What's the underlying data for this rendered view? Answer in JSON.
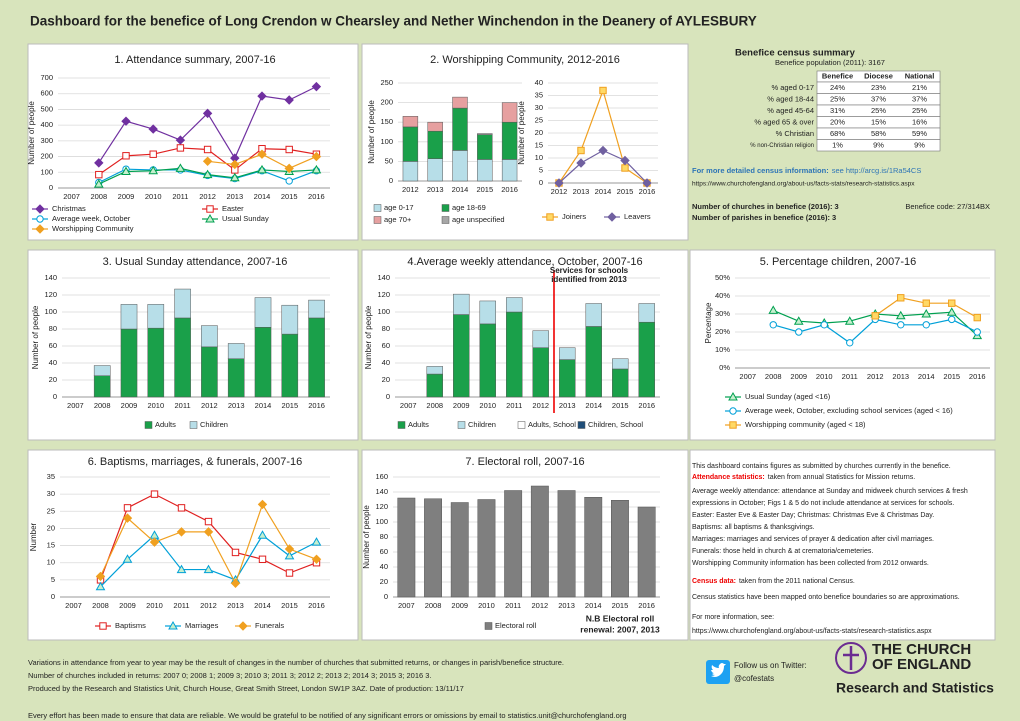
{
  "title": "Dashboard for the benefice of Long Crendon w Chearsley and Nether Winchendon in the Deanery of AYLESBURY",
  "chart_data": [
    {
      "type": "line",
      "title": "1. Attendance summary, 2007-16",
      "y_label": "Number of people",
      "grid": true,
      "categories": [
        "2007",
        "2008",
        "2009",
        "2010",
        "2011",
        "2012",
        "2013",
        "2014",
        "2015",
        "2016"
      ],
      "ylim": [
        0,
        700
      ],
      "yticks": [
        0,
        100,
        200,
        300,
        400,
        500,
        600,
        700
      ],
      "series": [
        {
          "name": "Christmas",
          "color": "#7030a0",
          "marker": "diamond",
          "values": [
            null,
            160,
            425,
            375,
            305,
            475,
            190,
            585,
            560,
            645
          ]
        },
        {
          "name": "Easter",
          "color": "#e02020",
          "marker": "square",
          "values": [
            null,
            85,
            205,
            215,
            255,
            245,
            115,
            250,
            245,
            215
          ]
        },
        {
          "name": "Average week, October",
          "color": "#00a0d8",
          "marker": "circle",
          "values": [
            null,
            35,
            120,
            115,
            115,
            80,
            60,
            110,
            45,
            110
          ]
        },
        {
          "name": "Usual Sunday",
          "color": "#00a050",
          "marker": "triangle",
          "values": [
            null,
            25,
            105,
            110,
            125,
            85,
            65,
            115,
            105,
            115
          ]
        },
        {
          "name": "Worshipping Community",
          "color": "#f0a020",
          "marker": "diamond",
          "values": [
            null,
            null,
            null,
            null,
            null,
            170,
            150,
            215,
            125,
            200
          ]
        }
      ]
    },
    {
      "type": "stacked-bar",
      "title": "2. Worshipping Community, 2012-2016",
      "y_label": "Number of people",
      "grid": true,
      "categories": [
        "2012",
        "2013",
        "2014",
        "2015",
        "2016"
      ],
      "ylim": [
        0,
        250
      ],
      "yticks": [
        0,
        50,
        100,
        150,
        200,
        250
      ],
      "series": [
        {
          "name": "age 0-17",
          "color": "#b7dee8",
          "values": [
            50,
            57,
            78,
            55,
            55
          ]
        },
        {
          "name": "age 18-69",
          "color": "#1aa04a",
          "values": [
            88,
            70,
            108,
            63,
            95
          ]
        },
        {
          "name": "age 70+",
          "color": "#e6a0a0",
          "values": [
            27,
            23,
            28,
            0,
            50
          ]
        },
        {
          "name": "age unspecified",
          "color": "#a6a6a6",
          "values": [
            0,
            0,
            0,
            3,
            0
          ]
        }
      ]
    },
    {
      "type": "line",
      "y_label": "Number of people",
      "grid": true,
      "categories": [
        "2012",
        "2013",
        "2014",
        "2015",
        "2016"
      ],
      "ylim": [
        0,
        40
      ],
      "yticks": [
        0,
        5,
        10,
        15,
        20,
        25,
        30,
        35,
        40
      ],
      "series": [
        {
          "name": "Joiners",
          "color": "#f0a020",
          "marker": "square",
          "values": [
            0,
            13,
            37,
            6,
            0
          ]
        },
        {
          "name": "Leavers",
          "color": "#7060a0",
          "marker": "diamond",
          "values": [
            0,
            8,
            13,
            9,
            0
          ]
        }
      ]
    },
    {
      "type": "stacked-bar",
      "title": "3. Usual Sunday attendance, 2007-16",
      "y_label": "Number of people",
      "grid": true,
      "categories": [
        "2007",
        "2008",
        "2009",
        "2010",
        "2011",
        "2012",
        "2013",
        "2014",
        "2015",
        "2016"
      ],
      "ylim": [
        0,
        140
      ],
      "yticks": [
        0,
        20,
        40,
        60,
        80,
        100,
        120,
        140
      ],
      "series": [
        {
          "name": "Adults",
          "color": "#1aa04a",
          "values": [
            null,
            25,
            80,
            81,
            93,
            59,
            45,
            82,
            74,
            93
          ]
        },
        {
          "name": "Children",
          "color": "#b7dee8",
          "values": [
            null,
            12,
            29,
            28,
            34,
            25,
            18,
            35,
            34,
            21
          ]
        }
      ]
    },
    {
      "type": "stacked-bar",
      "title": "4.Average weekly attendance, October, 2007-16",
      "y_label": "Number of people",
      "grid": true,
      "annotation": [
        "Services for schools",
        "identified from 2013"
      ],
      "categories": [
        "2007",
        "2008",
        "2009",
        "2010",
        "2011",
        "2012",
        "2013",
        "2014",
        "2015",
        "2016"
      ],
      "ylim": [
        0,
        140
      ],
      "yticks": [
        0,
        20,
        40,
        60,
        80,
        100,
        120,
        140
      ],
      "series": [
        {
          "name": "Adults",
          "color": "#1aa04a",
          "values": [
            null,
            27,
            97,
            86,
            100,
            58,
            44,
            83,
            33,
            88
          ]
        },
        {
          "name": "Children",
          "color": "#b7dee8",
          "values": [
            null,
            9,
            24,
            27,
            17,
            20,
            14,
            27,
            12,
            22
          ]
        },
        {
          "name": "Adults, School",
          "color": "#ffffff",
          "values": [
            null,
            null,
            null,
            null,
            null,
            null,
            0,
            0,
            0,
            0
          ]
        },
        {
          "name": "Children, School",
          "color": "#1f4e79",
          "values": [
            null,
            null,
            null,
            null,
            null,
            null,
            0,
            0,
            0,
            0
          ]
        }
      ]
    },
    {
      "type": "line",
      "title": "5. Percentage children, 2007-16",
      "y_label": "Percentage",
      "grid": true,
      "categories": [
        "2007",
        "2008",
        "2009",
        "2010",
        "2011",
        "2012",
        "2013",
        "2014",
        "2015",
        "2016"
      ],
      "ylim": [
        0,
        50
      ],
      "yticks": [
        {
          "value": 0,
          "label": "0%"
        },
        {
          "value": 10,
          "label": "10%"
        },
        {
          "value": 20,
          "label": "20%"
        },
        {
          "value": 30,
          "label": "30%"
        },
        {
          "value": 40,
          "label": "40%"
        },
        {
          "value": 50,
          "label": "50%"
        }
      ],
      "series": [
        {
          "name": "Usual Sunday (aged <16)",
          "color": "#00a050",
          "marker": "triangle",
          "values": [
            null,
            32,
            26,
            25,
            26,
            30,
            29,
            30,
            31,
            18
          ]
        },
        {
          "name": "Average week, October, excluding school services (aged < 16)",
          "color": "#00a0d8",
          "marker": "circle",
          "values": [
            null,
            24,
            20,
            24,
            14,
            27,
            24,
            24,
            27,
            20
          ]
        },
        {
          "name": "Worshipping community (aged < 18)",
          "color": "#f0a020",
          "marker": "square",
          "values": [
            null,
            null,
            null,
            null,
            null,
            29,
            39,
            36,
            36,
            28
          ]
        }
      ]
    },
    {
      "type": "line",
      "title": "6. Baptisms, marriages, & funerals, 2007-16",
      "y_label": "Number",
      "grid": true,
      "categories": [
        "2007",
        "2008",
        "2009",
        "2010",
        "2011",
        "2012",
        "2013",
        "2014",
        "2015",
        "2016"
      ],
      "ylim": [
        0,
        35
      ],
      "yticks": [
        0,
        5,
        10,
        15,
        20,
        25,
        30,
        35
      ],
      "series": [
        {
          "name": "Baptisms",
          "color": "#e02020",
          "marker": "square",
          "values": [
            null,
            5,
            26,
            30,
            26,
            22,
            13,
            11,
            7,
            10
          ]
        },
        {
          "name": "Marriages",
          "color": "#00a0d8",
          "marker": "triangle",
          "values": [
            null,
            3,
            11,
            18,
            8,
            8,
            5,
            18,
            12,
            16
          ]
        },
        {
          "name": "Funerals",
          "color": "#f0a020",
          "marker": "diamond",
          "values": [
            null,
            6,
            23,
            16,
            19,
            19,
            4,
            27,
            14,
            11
          ]
        }
      ]
    },
    {
      "type": "bar",
      "title": "7. Electoral roll, 2007-16",
      "y_label": "Number of people",
      "grid": true,
      "annotation": [
        "N.B Electoral roll",
        "renewal: 2007, 2013"
      ],
      "categories": [
        "2007",
        "2008",
        "2009",
        "2010",
        "2011",
        "2012",
        "2013",
        "2014",
        "2015",
        "2016"
      ],
      "ylim": [
        0,
        160
      ],
      "yticks": [
        0,
        20,
        40,
        60,
        80,
        100,
        120,
        140,
        160
      ],
      "series": [
        {
          "name": "Electoral roll",
          "color": "#7f7f7f",
          "values": [
            132,
            131,
            126,
            130,
            142,
            148,
            142,
            133,
            129,
            120
          ]
        }
      ]
    }
  ],
  "census": {
    "title": "Benefice census summary",
    "subtitle": "Benefice population (2011): 3167",
    "columns": [
      "Benefice",
      "Diocese",
      "National"
    ],
    "rows": [
      [
        "% aged 0-17",
        "24%",
        "23%",
        "21%"
      ],
      [
        "% aged 18-44",
        "25%",
        "37%",
        "37%"
      ],
      [
        "% aged 45-64",
        "31%",
        "25%",
        "25%"
      ],
      [
        "% aged 65 & over",
        "20%",
        "15%",
        "16%"
      ],
      [
        "% Christian",
        "68%",
        "58%",
        "59%"
      ],
      [
        "% non-Christian religion",
        "1%",
        "9%",
        "9%"
      ]
    ],
    "info_label": "For more detailed census information:",
    "info_link": "see http://arcg.is/1Ra54CS",
    "url": "https://www.churchofengland.org/about-us/facts-stats/research-statistics.aspx"
  },
  "benefice": {
    "churches": "Number of churches in benefice (2016): 3",
    "code": "Benefice code: 27/314BX",
    "parishes": "Number of parishes in benefice (2016): 3"
  },
  "notes": [
    {
      "text": "This dashboard contains figures as submitted by churches currently in the benefice."
    },
    {
      "label": "Attendance statistics:",
      "text": "taken from annual Statistics for Mission returns."
    },
    {
      "text": "Average weekly attendance: attendance at Sunday and midweek church services & fresh"
    },
    {
      "text": "expressions in October; Figs 1 & 5 do not include attendance at services for schools."
    },
    {
      "text": "Easter: Easter Eve & Easter Day; Christmas: Christmas Eve & Christmas Day."
    },
    {
      "text": "Baptisms: all baptisms & thanksgivings."
    },
    {
      "text": "Marriages: marriages and services of prayer & dedication after civil marriages."
    },
    {
      "text": "Funerals: those held in church & at crematoria/cemeteries."
    },
    {
      "text": "Worshipping Community information has been collected from 2012 onwards."
    },
    {
      "label": "Census data:",
      "text": "taken from the 2011 national Census."
    },
    {
      "text": "Census statistics have been mapped onto benefice boundaries so are approximations."
    },
    {
      "text": "For more information, see:"
    },
    {
      "text": "https://www.churchofengland.org/about-us/facts-stats/research-statistics.aspx"
    }
  ],
  "footer": [
    "Variations in attendance from year to year may be the result of changes in the number of churches that submitted returns, or changes in parish/benefice structure.",
    "Number of churches included in returns: 2007 0; 2008 1; 2009 3; 2010 3; 2011 3; 2012 2; 2013 2; 2014 3; 2015 3; 2016 3.",
    "Produced by the Research and Statistics Unit, Church House, Great Smith Street, London SW1P 3AZ. Date of production: 13/11/17",
    "Every effort has been made to ensure that data are reliable. We would be grateful to be notified of any significant errors or omissions by email to statistics.unit@churchofengland.org"
  ],
  "twitter": {
    "label": "Follow us on Twitter:",
    "handle": "@cofestats"
  },
  "logo": {
    "lines": [
      "THE CHURCH",
      "OF ENGLAND"
    ],
    "unit": "Research and Statistics"
  }
}
